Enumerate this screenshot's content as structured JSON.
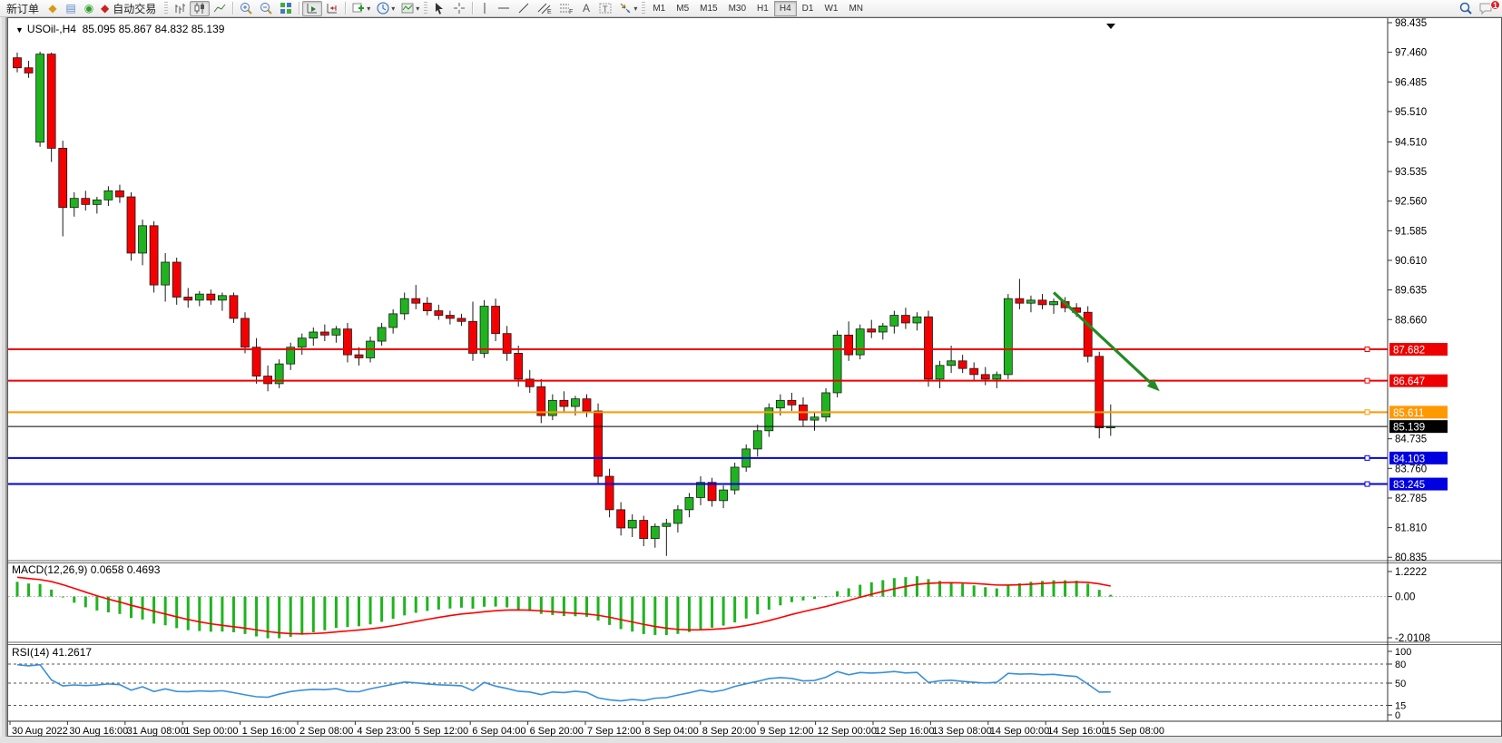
{
  "toolbar": {
    "new_order_label": "新订单",
    "autotrading_label": "自动交易",
    "timeframes": [
      "M1",
      "M5",
      "M15",
      "M30",
      "H1",
      "H4",
      "D1",
      "W1",
      "MN"
    ],
    "active_timeframe": "H4",
    "notification_count": "1"
  },
  "chart": {
    "symbol_period": "USOil-,H4",
    "ohlc": "85.095 85.867 84.832 85.139",
    "price_ticks": [
      "98.435",
      "97.460",
      "96.485",
      "95.510",
      "94.510",
      "93.535",
      "92.560",
      "91.585",
      "90.610",
      "89.635",
      "88.660",
      "84.735",
      "83.760",
      "82.785",
      "81.810",
      "80.835"
    ],
    "levels": [
      {
        "value": 87.682,
        "label": "87.682",
        "color": "#ee0000",
        "width": 2
      },
      {
        "value": 86.647,
        "label": "86.647",
        "color": "#ee0000",
        "width": 2
      },
      {
        "value": 85.611,
        "label": "85.611",
        "color": "#ff9900",
        "width": 2
      },
      {
        "value": 84.103,
        "label": "84.103",
        "color": "#0000e0",
        "width": 2
      },
      {
        "value": 83.245,
        "label": "83.245",
        "color": "#0000e0",
        "width": 2
      }
    ],
    "bid_line": {
      "value": 85.139,
      "label": "85.139",
      "color": "#000000"
    },
    "colors": {
      "bull": "#1fb41f",
      "bear": "#f40000",
      "wick": "#1a1a1a"
    },
    "arrow": {
      "from_bar": 91,
      "from_price": 89.55,
      "to_bar": 100.3,
      "to_price": 86.3,
      "color": "#228B22"
    },
    "time_labels": [
      "30 Aug 2022",
      "30 Aug 16:00",
      "31 Aug 08:00",
      "1 Sep 00:00",
      "1 Sep 16:00",
      "2 Sep 08:00",
      "4 Sep 23:00",
      "5 Sep 12:00",
      "6 Sep 04:00",
      "6 Sep 20:00",
      "7 Sep 12:00",
      "8 Sep 04:00",
      "8 Sep 20:00",
      "9 Sep 12:00",
      "12 Sep 00:00",
      "12 Sep 16:00",
      "13 Sep 08:00",
      "14 Sep 00:00",
      "14 Sep 16:00",
      "15 Sep 08:00"
    ],
    "candles": [
      [
        97.28,
        97.45,
        96.8,
        96.95
      ],
      [
        96.95,
        97.18,
        96.62,
        96.78
      ],
      [
        94.5,
        97.48,
        94.35,
        97.4
      ],
      [
        97.4,
        97.45,
        93.85,
        94.3
      ],
      [
        94.3,
        94.55,
        91.4,
        92.35
      ],
      [
        92.35,
        92.85,
        92.05,
        92.65
      ],
      [
        92.65,
        92.9,
        92.25,
        92.45
      ],
      [
        92.45,
        92.7,
        92.15,
        92.6
      ],
      [
        92.6,
        93.05,
        92.4,
        92.9
      ],
      [
        92.9,
        93.1,
        92.5,
        92.7
      ],
      [
        92.7,
        92.85,
        90.6,
        90.85
      ],
      [
        90.85,
        91.95,
        90.45,
        91.75
      ],
      [
        91.75,
        91.9,
        89.55,
        89.8
      ],
      [
        89.8,
        90.85,
        89.25,
        90.55
      ],
      [
        90.55,
        90.7,
        89.15,
        89.4
      ],
      [
        89.4,
        89.7,
        89.05,
        89.3
      ],
      [
        89.3,
        89.6,
        89.1,
        89.5
      ],
      [
        89.5,
        89.65,
        89.15,
        89.3
      ],
      [
        89.3,
        89.55,
        88.95,
        89.45
      ],
      [
        89.45,
        89.55,
        88.55,
        88.7
      ],
      [
        88.7,
        88.9,
        87.55,
        87.75
      ],
      [
        87.75,
        88.05,
        86.55,
        86.8
      ],
      [
        86.8,
        87.15,
        86.3,
        86.55
      ],
      [
        86.55,
        87.35,
        86.4,
        87.2
      ],
      [
        87.2,
        87.9,
        87.0,
        87.75
      ],
      [
        87.75,
        88.2,
        87.5,
        88.05
      ],
      [
        88.05,
        88.4,
        87.8,
        88.25
      ],
      [
        88.25,
        88.5,
        87.95,
        88.15
      ],
      [
        88.15,
        88.45,
        87.9,
        88.35
      ],
      [
        88.35,
        88.55,
        87.25,
        87.5
      ],
      [
        87.5,
        87.75,
        87.15,
        87.4
      ],
      [
        87.4,
        88.1,
        87.25,
        87.95
      ],
      [
        87.95,
        88.55,
        87.8,
        88.4
      ],
      [
        88.4,
        89.0,
        88.2,
        88.85
      ],
      [
        88.85,
        89.55,
        88.65,
        89.35
      ],
      [
        89.35,
        89.8,
        89.0,
        89.2
      ],
      [
        89.2,
        89.4,
        88.8,
        88.95
      ],
      [
        88.95,
        89.15,
        88.65,
        88.8
      ],
      [
        88.8,
        88.95,
        88.5,
        88.7
      ],
      [
        88.7,
        88.85,
        88.45,
        88.6
      ],
      [
        88.6,
        89.25,
        87.3,
        87.55
      ],
      [
        87.55,
        89.3,
        87.4,
        89.1
      ],
      [
        89.1,
        89.35,
        87.95,
        88.2
      ],
      [
        88.2,
        88.45,
        87.3,
        87.55
      ],
      [
        87.55,
        87.8,
        86.45,
        86.7
      ],
      [
        86.7,
        87.0,
        86.25,
        86.45
      ],
      [
        86.45,
        86.7,
        85.25,
        85.5
      ],
      [
        85.5,
        86.2,
        85.35,
        86.0
      ],
      [
        86.0,
        86.3,
        85.6,
        85.8
      ],
      [
        85.8,
        86.15,
        85.5,
        86.05
      ],
      [
        86.05,
        86.2,
        85.45,
        85.65
      ],
      [
        85.65,
        85.9,
        83.25,
        83.5
      ],
      [
        83.5,
        83.75,
        82.15,
        82.4
      ],
      [
        82.4,
        82.65,
        81.55,
        81.8
      ],
      [
        81.8,
        82.25,
        81.5,
        82.05
      ],
      [
        82.05,
        82.2,
        81.2,
        81.45
      ],
      [
        81.45,
        81.95,
        81.15,
        81.85
      ],
      [
        81.85,
        82.1,
        80.88,
        81.95
      ],
      [
        81.95,
        82.55,
        81.65,
        82.4
      ],
      [
        82.4,
        82.95,
        82.15,
        82.8
      ],
      [
        82.8,
        83.5,
        82.55,
        83.3
      ],
      [
        83.3,
        83.45,
        82.5,
        82.7
      ],
      [
        82.7,
        83.2,
        82.45,
        83.05
      ],
      [
        83.05,
        83.95,
        82.9,
        83.8
      ],
      [
        83.8,
        84.55,
        83.65,
        84.4
      ],
      [
        84.4,
        85.2,
        84.15,
        85.0
      ],
      [
        85.0,
        85.9,
        84.8,
        85.75
      ],
      [
        85.75,
        86.2,
        85.5,
        86.0
      ],
      [
        86.0,
        86.25,
        85.65,
        85.85
      ],
      [
        85.85,
        86.1,
        85.15,
        85.35
      ],
      [
        85.35,
        85.6,
        85.0,
        85.45
      ],
      [
        85.45,
        86.4,
        85.3,
        86.25
      ],
      [
        86.25,
        88.3,
        86.1,
        88.15
      ],
      [
        88.15,
        88.6,
        87.3,
        87.5
      ],
      [
        87.5,
        88.5,
        87.35,
        88.35
      ],
      [
        88.35,
        88.65,
        88.05,
        88.25
      ],
      [
        88.25,
        88.55,
        88.0,
        88.45
      ],
      [
        88.45,
        88.95,
        88.2,
        88.8
      ],
      [
        88.8,
        89.05,
        88.35,
        88.55
      ],
      [
        88.55,
        88.9,
        88.3,
        88.75
      ],
      [
        88.75,
        88.95,
        86.45,
        86.7
      ],
      [
        86.7,
        87.3,
        86.4,
        87.15
      ],
      [
        87.15,
        87.8,
        86.9,
        87.3
      ],
      [
        87.3,
        87.5,
        86.9,
        87.05
      ],
      [
        87.05,
        87.25,
        86.65,
        86.85
      ],
      [
        86.85,
        87.1,
        86.5,
        86.7
      ],
      [
        86.7,
        86.95,
        86.4,
        86.85
      ],
      [
        86.85,
        89.5,
        86.7,
        89.35
      ],
      [
        89.35,
        90.0,
        89.0,
        89.2
      ],
      [
        89.2,
        89.45,
        88.9,
        89.3
      ],
      [
        89.3,
        89.5,
        89.0,
        89.15
      ],
      [
        89.15,
        89.35,
        88.85,
        89.25
      ],
      [
        89.25,
        89.4,
        88.9,
        89.05
      ],
      [
        89.05,
        89.2,
        88.75,
        88.9
      ],
      [
        88.9,
        89.1,
        87.25,
        87.45
      ],
      [
        87.45,
        87.6,
        84.75,
        85.095
      ],
      [
        85.095,
        85.867,
        84.832,
        85.139
      ]
    ]
  },
  "macd": {
    "label": "MACD(12,26,9) 0.0658 0.4693",
    "axis_ticks": [
      "1.2222",
      "0.00",
      "-2.0108"
    ],
    "histogram_color": "#1fb41f",
    "signal_color": "#ff0000"
  },
  "rsi": {
    "label": "RSI(14) 41.2617",
    "axis_ticks": [
      "100",
      "80",
      "50",
      "15",
      "0"
    ],
    "dashed_levels": [
      80,
      50,
      15
    ],
    "line_color": "#3a8fd9"
  }
}
